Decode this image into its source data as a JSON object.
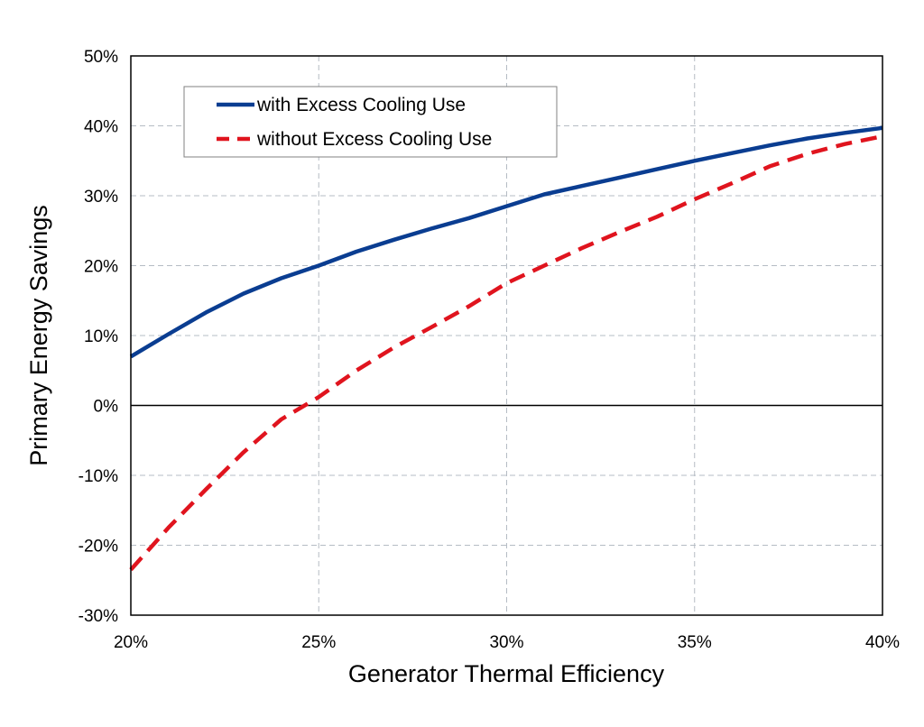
{
  "chart_data": {
    "type": "line",
    "xlabel": "Generator Thermal Efficiency",
    "ylabel": "Primary Energy Savings",
    "xlim": [
      0.2,
      0.4
    ],
    "ylim": [
      -0.3,
      0.5
    ],
    "x_ticks": [
      0.2,
      0.25,
      0.3,
      0.35,
      0.4
    ],
    "x_tick_labels": [
      "20%",
      "25%",
      "30%",
      "35%",
      "40%"
    ],
    "y_ticks": [
      -0.3,
      -0.2,
      -0.1,
      0.0,
      0.1,
      0.2,
      0.3,
      0.4,
      0.5
    ],
    "y_tick_labels": [
      "-30%",
      "-20%",
      "-10%",
      "0%",
      "10%",
      "20%",
      "30%",
      "40%",
      "50%"
    ],
    "grid": true,
    "legend_position": "top-left",
    "series": [
      {
        "name": "with Excess Cooling Use",
        "color": "#0a3d91",
        "style": "solid",
        "x": [
          0.2,
          0.21,
          0.22,
          0.23,
          0.24,
          0.25,
          0.26,
          0.27,
          0.28,
          0.29,
          0.3,
          0.31,
          0.32,
          0.33,
          0.34,
          0.35,
          0.36,
          0.37,
          0.38,
          0.39,
          0.4
        ],
        "values": [
          0.07,
          0.102,
          0.133,
          0.16,
          0.182,
          0.2,
          0.22,
          0.237,
          0.253,
          0.268,
          0.285,
          0.302,
          0.314,
          0.326,
          0.338,
          0.35,
          0.361,
          0.372,
          0.382,
          0.39,
          0.397
        ]
      },
      {
        "name": "without Excess Cooling Use",
        "color": "#e0141e",
        "style": "dashed",
        "x": [
          0.2,
          0.21,
          0.22,
          0.23,
          0.24,
          0.25,
          0.26,
          0.27,
          0.28,
          0.29,
          0.3,
          0.31,
          0.32,
          0.33,
          0.34,
          0.35,
          0.36,
          0.37,
          0.38,
          0.39,
          0.4
        ],
        "values": [
          -0.235,
          -0.175,
          -0.12,
          -0.067,
          -0.02,
          0.012,
          0.05,
          0.083,
          0.112,
          0.142,
          0.175,
          0.2,
          0.225,
          0.248,
          0.27,
          0.295,
          0.318,
          0.342,
          0.36,
          0.374,
          0.385
        ]
      }
    ]
  }
}
